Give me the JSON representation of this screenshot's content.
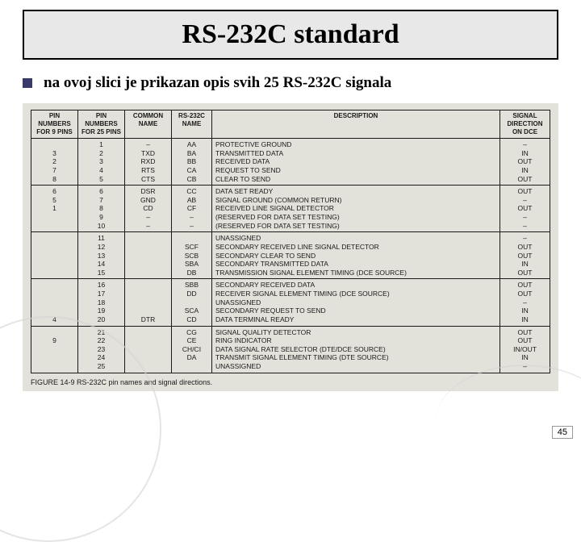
{
  "title": "RS-232C standard",
  "bullet": "na ovoj slici je prikazan opis svih 25 RS-232C signala",
  "table": {
    "headers": {
      "pin9": "PIN\nNUMBERS\nFOR 9 PINS",
      "pin25": "PIN\nNUMBERS\nFOR 25 PINS",
      "common": "COMMON\nNAME",
      "rs": "RS-232C\nNAME",
      "desc": "DESCRIPTION",
      "dir": "SIGNAL\nDIRECTION\nON DCE"
    },
    "groups": [
      {
        "pin9": "\n3\n2\n7\n8",
        "pin25": "1\n2\n3\n4\n5",
        "common": "–\nTXD\nRXD\nRTS\nCTS",
        "rs": "AA\nBA\nBB\nCA\nCB",
        "desc": "PROTECTIVE GROUND\nTRANSMITTED DATA\nRECEIVED DATA\nREQUEST TO SEND\nCLEAR TO SEND",
        "dir": "–\nIN\nOUT\nIN\nOUT"
      },
      {
        "pin9": "6\n5\n1\n",
        "pin25": "6\n7\n8\n9\n10",
        "common": "DSR\nGND\nCD\n–\n–",
        "rs": "CC\nAB\nCF\n–\n–",
        "desc": "DATA SET READY\nSIGNAL GROUND (COMMON RETURN)\nRECEIVED LINE SIGNAL DETECTOR\n(RESERVED FOR DATA SET TESTING)\n(RESERVED FOR DATA SET TESTING)",
        "dir": "OUT\n–\nOUT\n–\n–"
      },
      {
        "pin9": "",
        "pin25": "11\n12\n13\n14\n15",
        "common": "\n\n\n\n",
        "rs": "\nSCF\nSCB\nSBA\nDB",
        "desc": "UNASSIGNED\nSECONDARY RECEIVED LINE SIGNAL DETECTOR\nSECONDARY CLEAR TO SEND\nSECONDARY TRANSMITTED DATA\nTRANSMISSION SIGNAL ELEMENT TIMING (DCE SOURCE)",
        "dir": "–\nOUT\nOUT\nIN\nOUT"
      },
      {
        "pin9": "\n\n\n\n4",
        "pin25": "16\n17\n18\n19\n20",
        "common": "\n\n\n\nDTR",
        "rs": "SBB\nDD\n\nSCA\nCD",
        "desc": "SECONDARY RECEIVED DATA\nRECEIVER SIGNAL ELEMENT TIMING (DCE SOURCE)\nUNASSIGNED\nSECONDARY REQUEST TO SEND\nDATA TERMINAL READY",
        "dir": "OUT\nOUT\n–\nIN\nIN"
      },
      {
        "pin9": "\n9\n\n\n",
        "pin25": "21\n22\n23\n24\n25",
        "common": "",
        "rs": "CG\nCE\nCH/CI\nDA\n",
        "desc": "SIGNAL QUALITY DETECTOR\nRING INDICATOR\nDATA SIGNAL RATE SELECTOR (DTE/DCE SOURCE)\nTRANSMIT SIGNAL ELEMENT TIMING (DTE SOURCE)\nUNASSIGNED",
        "dir": "OUT\nOUT\nIN/OUT\nIN\n–"
      }
    ]
  },
  "caption": "FIGURE 14-9   RS-232C pin names and signal directions.",
  "page": "45"
}
